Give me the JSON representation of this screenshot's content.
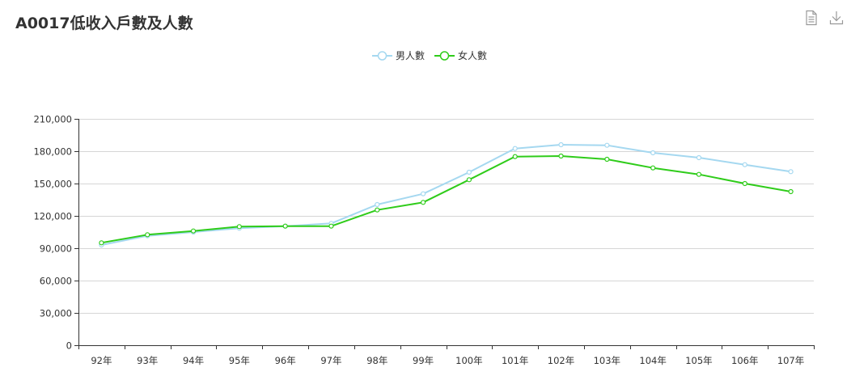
{
  "header": {
    "title": "A0017低收入戶數及人數"
  },
  "toolbar": {
    "icons": [
      "document-icon",
      "download-icon"
    ]
  },
  "colors": {
    "male": "#a5d8f0",
    "female": "#2fcc1a",
    "grid": "#d6d6d6",
    "axis": "#333333"
  },
  "chart_data": {
    "type": "line",
    "title": "A0017低收入戶數及人數",
    "categories": [
      "92年",
      "93年",
      "94年",
      "95年",
      "96年",
      "97年",
      "98年",
      "99年",
      "100年",
      "101年",
      "102年",
      "103年",
      "104年",
      "105年",
      "106年",
      "107年"
    ],
    "series": [
      {
        "name": "男人數",
        "values": [
          93000,
          101500,
          105000,
          108500,
          110500,
          113000,
          130500,
          140500,
          160500,
          182500,
          186000,
          185500,
          178500,
          174000,
          167500,
          161000
        ]
      },
      {
        "name": "女人數",
        "values": [
          95000,
          102500,
          106000,
          110000,
          110500,
          110500,
          125500,
          132500,
          153500,
          175000,
          175500,
          172500,
          164500,
          158500,
          150000,
          142500
        ]
      }
    ],
    "ylim": [
      0,
      210000
    ],
    "yticks": [
      0,
      30000,
      60000,
      90000,
      120000,
      150000,
      180000,
      210000
    ],
    "ytick_labels": [
      "0",
      "30,000",
      "60,000",
      "90,000",
      "120,000",
      "150,000",
      "180,000",
      "210,000"
    ],
    "grid": true,
    "legend_position": "top-center"
  }
}
